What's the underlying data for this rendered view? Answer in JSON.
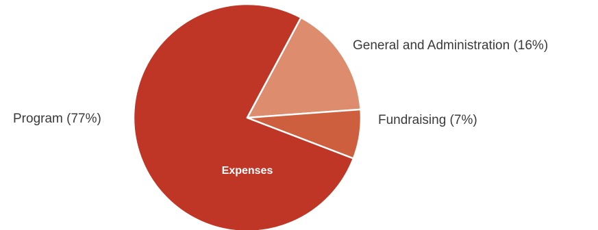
{
  "chart_data": {
    "type": "pie",
    "title": "Expenses",
    "slices": [
      {
        "label": "Program (77%)",
        "name": "Program",
        "value": 77,
        "color": "#bf3526"
      },
      {
        "label": "General and Administration (16%)",
        "name": "General and Administration",
        "value": 16,
        "color": "#dd8c6d"
      },
      {
        "label": "Fundraising (7%)",
        "name": "Fundraising",
        "value": 7,
        "color": "#cd5f3f"
      }
    ]
  }
}
